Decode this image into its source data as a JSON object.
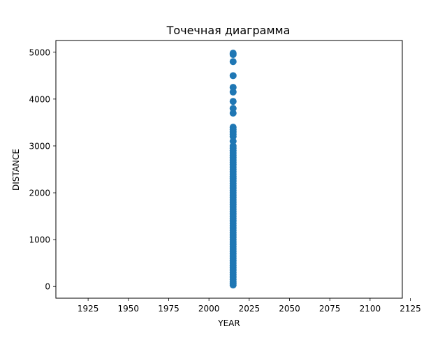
{
  "chart_data": {
    "type": "scatter",
    "title": "Точечная диаграмма",
    "xlabel": "YEAR",
    "ylabel": "DISTANCE",
    "xlim": [
      1905,
      2120
    ],
    "ylim": [
      -250,
      5250
    ],
    "xticks": [
      1925,
      1950,
      1975,
      2000,
      2025,
      2050,
      2075,
      2100,
      2125
    ],
    "yticks": [
      0,
      1000,
      2000,
      3000,
      4000,
      5000
    ],
    "grid": false,
    "legend": "none",
    "color": "#1f77b4",
    "series": [
      {
        "x": [
          2015,
          2015,
          2015,
          2015,
          2015,
          2015,
          2015,
          2015,
          2015,
          2015,
          2015,
          2015,
          2015,
          2015,
          2015,
          2015,
          2015,
          2015,
          2015,
          2015,
          2015,
          2015,
          2015,
          2015,
          2015,
          2015,
          2015,
          2015,
          2015,
          2015,
          2015,
          2015,
          2015,
          2015,
          2015,
          2015,
          2015,
          2015,
          2015,
          2015,
          2015,
          2015,
          2015,
          2015,
          2015,
          2015,
          2015,
          2015,
          2015,
          2015,
          2015,
          2015,
          2015,
          2015,
          2015,
          2015,
          2015,
          2015,
          2015,
          2015,
          2015,
          2015,
          2015,
          2015,
          2015,
          2015,
          2015,
          2015,
          2015,
          2015,
          2015,
          2015,
          2015,
          2015,
          2015,
          2015
        ],
        "y": [
          31,
          67,
          100,
          150,
          200,
          250,
          300,
          350,
          400,
          450,
          500,
          550,
          600,
          650,
          700,
          750,
          800,
          850,
          900,
          950,
          1000,
          1050,
          1100,
          1150,
          1200,
          1250,
          1300,
          1350,
          1400,
          1450,
          1500,
          1550,
          1600,
          1650,
          1700,
          1750,
          1800,
          1850,
          1900,
          1950,
          2000,
          2050,
          2100,
          2150,
          2200,
          2250,
          2300,
          2350,
          2400,
          2450,
          2500,
          2550,
          2600,
          2650,
          2700,
          2750,
          2800,
          2850,
          2900,
          2950,
          3000,
          3200,
          3300,
          3400,
          3700,
          3800,
          3950,
          4150,
          4250,
          4500,
          4800,
          4950,
          4980,
          3100,
          3250,
          3350
        ]
      }
    ]
  }
}
